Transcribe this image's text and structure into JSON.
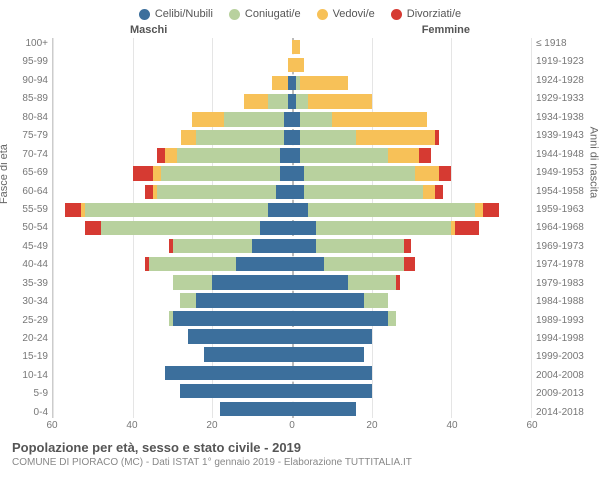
{
  "legend": [
    {
      "label": "Celibi/Nubili",
      "color": "#3c6f9c"
    },
    {
      "label": "Coniugati/e",
      "color": "#b8d19e"
    },
    {
      "label": "Vedovi/e",
      "color": "#f7c158"
    },
    {
      "label": "Divorziati/e",
      "color": "#d63a32"
    }
  ],
  "side_labels": {
    "left": "Maschi",
    "right": "Femmine"
  },
  "axis_labels": {
    "left": "Fasce di età",
    "right": "Anni di nascita"
  },
  "age_groups": [
    "100+",
    "95-99",
    "90-94",
    "85-89",
    "80-84",
    "75-79",
    "70-74",
    "65-69",
    "60-64",
    "55-59",
    "50-54",
    "45-49",
    "40-44",
    "35-39",
    "30-34",
    "25-29",
    "20-24",
    "15-19",
    "10-14",
    "5-9",
    "0-4"
  ],
  "birth_years": [
    "≤ 1918",
    "1919-1923",
    "1924-1928",
    "1929-1933",
    "1934-1938",
    "1939-1943",
    "1944-1948",
    "1949-1953",
    "1954-1958",
    "1959-1963",
    "1964-1968",
    "1969-1973",
    "1974-1978",
    "1979-1983",
    "1984-1988",
    "1989-1993",
    "1994-1998",
    "1999-2003",
    "2004-2008",
    "2009-2013",
    "2014-2018"
  ],
  "x_max": 60,
  "x_ticks": [
    60,
    40,
    20,
    0,
    20,
    40,
    60
  ],
  "colors": {
    "single": "#3c6f9c",
    "married": "#b8d19e",
    "widowed": "#f7c158",
    "divorced": "#d63a32",
    "grid": "#e5e5e5",
    "centerline": "#bbbbbb",
    "text": "#666666"
  },
  "rows": [
    {
      "m": [
        0,
        0,
        0,
        0
      ],
      "f": [
        0,
        0,
        2,
        0
      ]
    },
    {
      "m": [
        0,
        0,
        1,
        0
      ],
      "f": [
        0,
        0,
        3,
        0
      ]
    },
    {
      "m": [
        1,
        0,
        4,
        0
      ],
      "f": [
        1,
        1,
        12,
        0
      ]
    },
    {
      "m": [
        1,
        5,
        6,
        0
      ],
      "f": [
        1,
        3,
        16,
        0
      ]
    },
    {
      "m": [
        2,
        15,
        8,
        0
      ],
      "f": [
        2,
        8,
        24,
        0
      ]
    },
    {
      "m": [
        2,
        22,
        4,
        0
      ],
      "f": [
        2,
        14,
        20,
        1
      ]
    },
    {
      "m": [
        3,
        26,
        3,
        2
      ],
      "f": [
        2,
        22,
        8,
        3
      ]
    },
    {
      "m": [
        3,
        30,
        2,
        5
      ],
      "f": [
        3,
        28,
        6,
        3
      ]
    },
    {
      "m": [
        4,
        30,
        1,
        2
      ],
      "f": [
        3,
        30,
        3,
        2
      ]
    },
    {
      "m": [
        6,
        46,
        1,
        4
      ],
      "f": [
        4,
        42,
        2,
        4
      ]
    },
    {
      "m": [
        8,
        40,
        0,
        4
      ],
      "f": [
        6,
        34,
        1,
        6
      ]
    },
    {
      "m": [
        10,
        20,
        0,
        1
      ],
      "f": [
        6,
        22,
        0,
        2
      ]
    },
    {
      "m": [
        14,
        22,
        0,
        1
      ],
      "f": [
        8,
        20,
        0,
        3
      ]
    },
    {
      "m": [
        20,
        10,
        0,
        0
      ],
      "f": [
        14,
        12,
        0,
        1
      ]
    },
    {
      "m": [
        24,
        4,
        0,
        0
      ],
      "f": [
        18,
        6,
        0,
        0
      ]
    },
    {
      "m": [
        30,
        1,
        0,
        0
      ],
      "f": [
        24,
        2,
        0,
        0
      ]
    },
    {
      "m": [
        26,
        0,
        0,
        0
      ],
      "f": [
        20,
        0,
        0,
        0
      ]
    },
    {
      "m": [
        22,
        0,
        0,
        0
      ],
      "f": [
        18,
        0,
        0,
        0
      ]
    },
    {
      "m": [
        32,
        0,
        0,
        0
      ],
      "f": [
        20,
        0,
        0,
        0
      ]
    },
    {
      "m": [
        28,
        0,
        0,
        0
      ],
      "f": [
        20,
        0,
        0,
        0
      ]
    },
    {
      "m": [
        18,
        0,
        0,
        0
      ],
      "f": [
        16,
        0,
        0,
        0
      ]
    }
  ],
  "footer": {
    "title": "Popolazione per età, sesso e stato civile - 2019",
    "subtitle": "COMUNE DI PIORACO (MC) - Dati ISTAT 1° gennaio 2019 - Elaborazione TUTTITALIA.IT"
  }
}
